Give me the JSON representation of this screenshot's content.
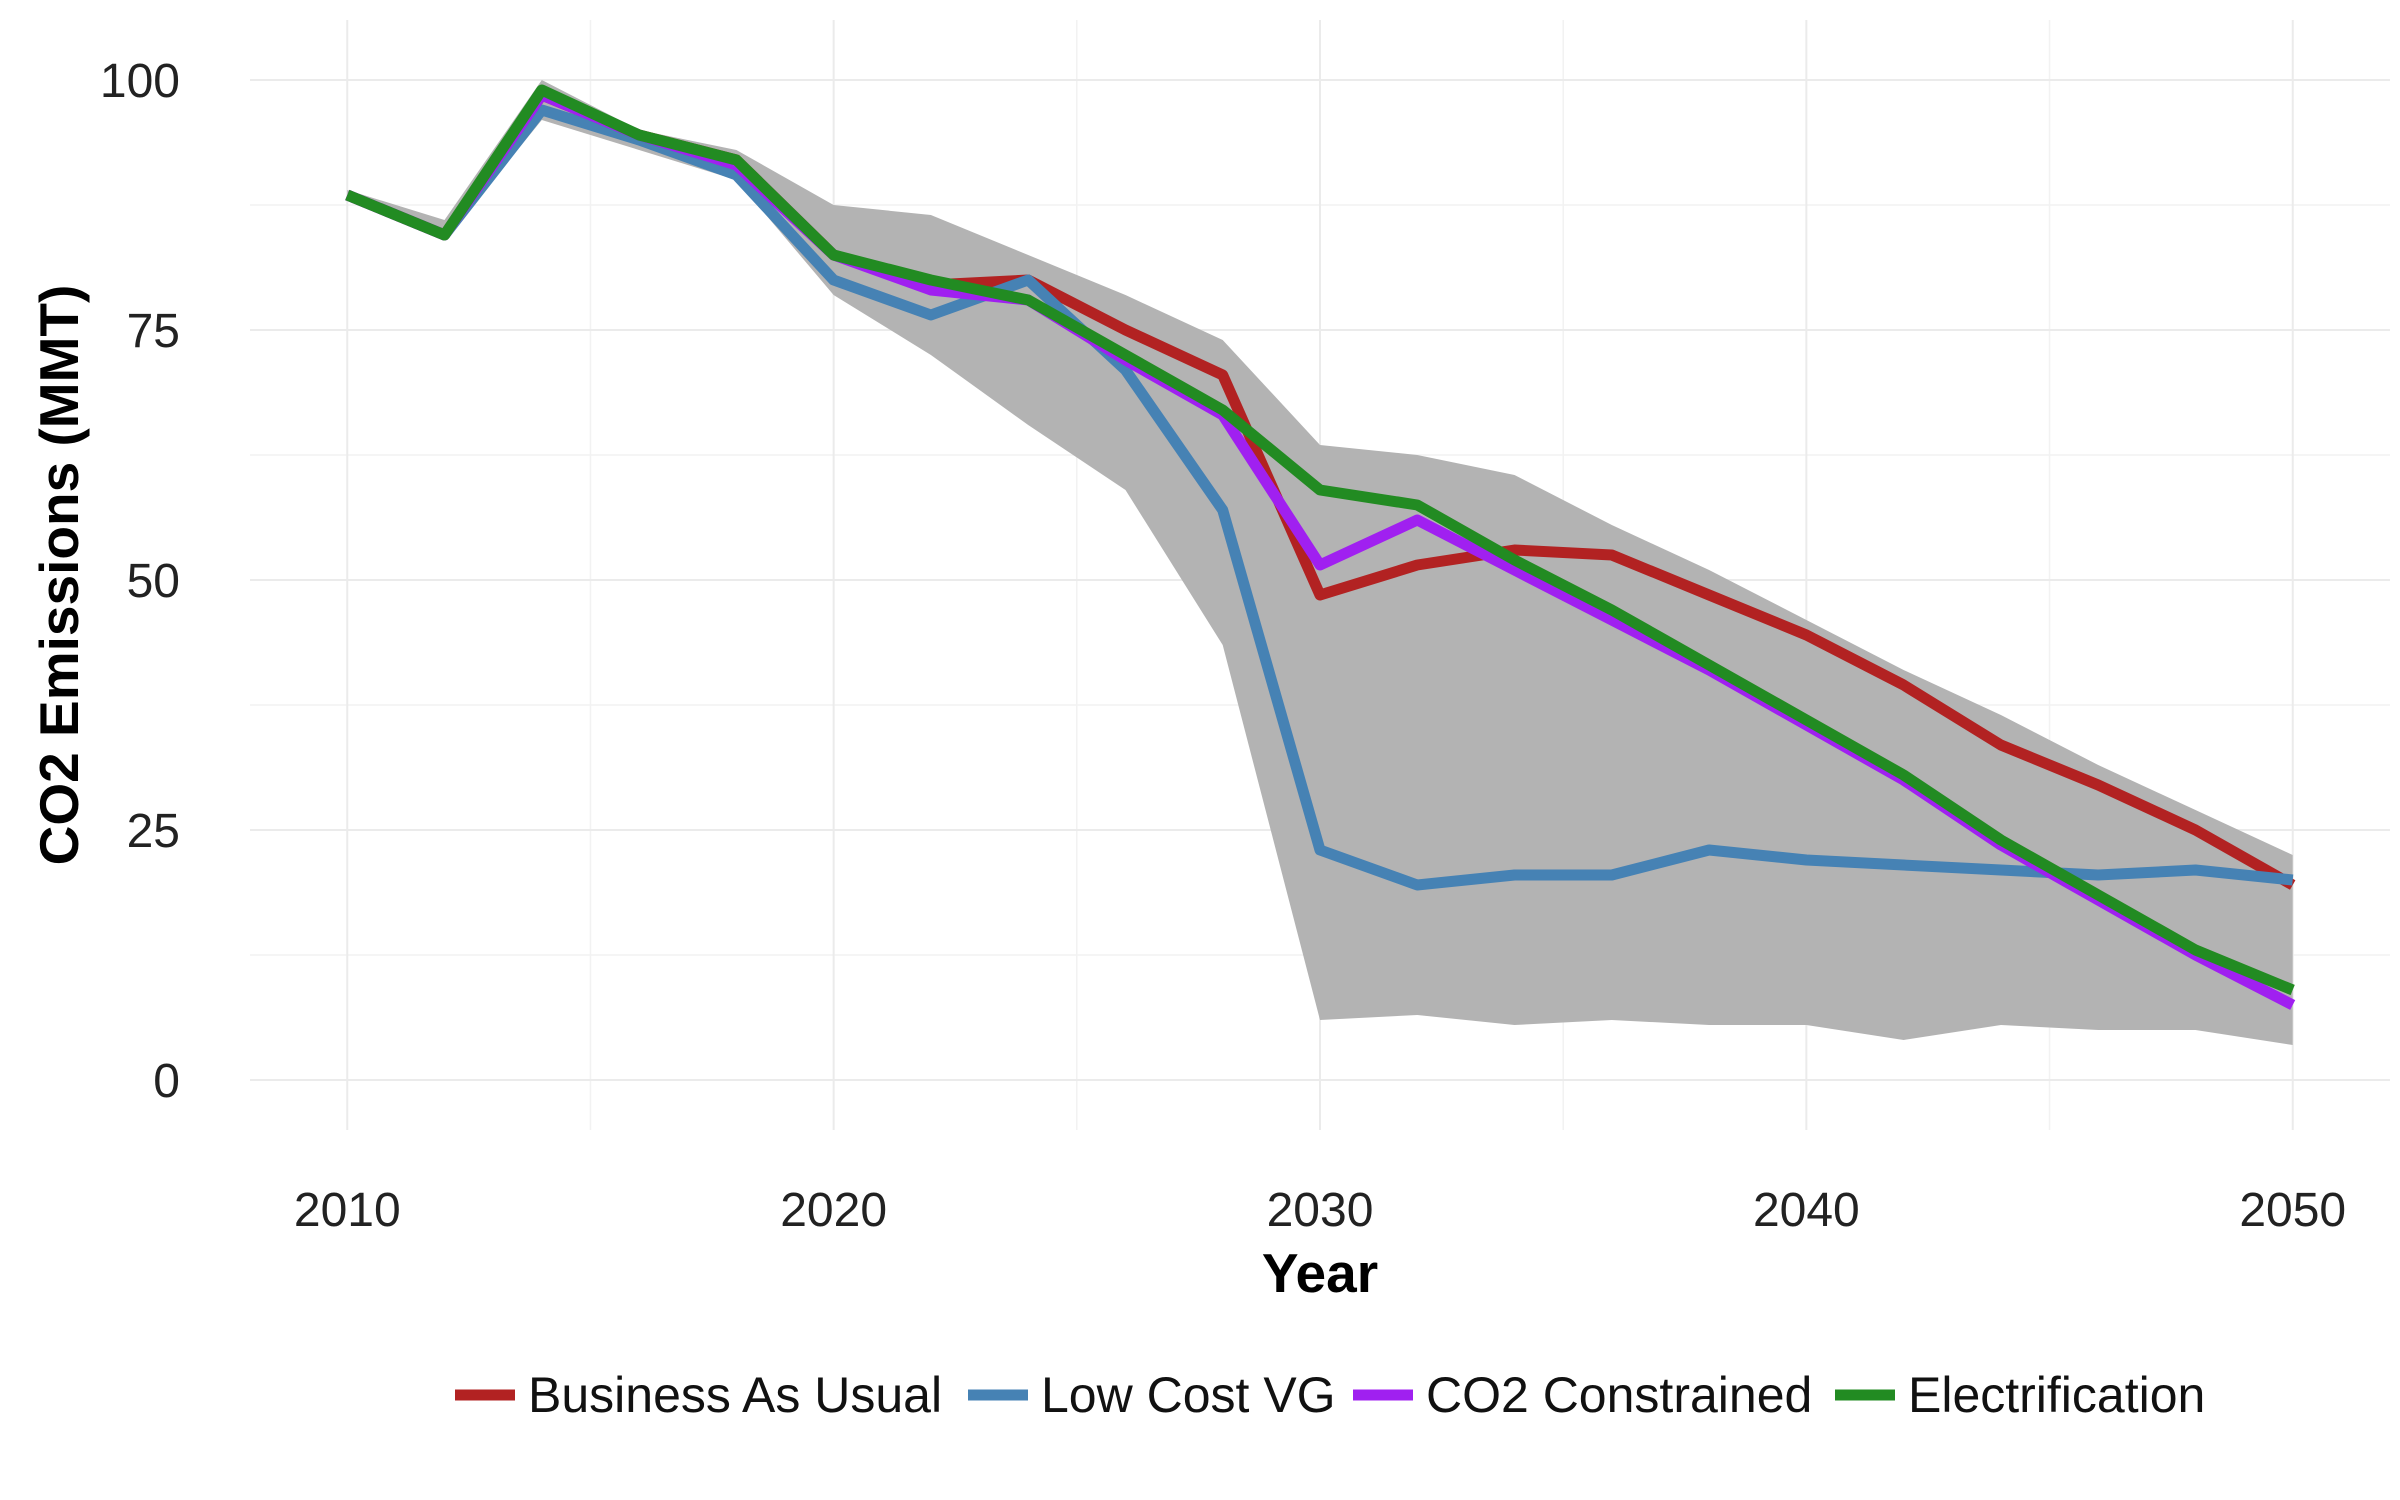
{
  "chart_data": {
    "type": "line",
    "xlabel": "Year",
    "ylabel": "CO2 Emissions (MMT)",
    "xlim": [
      2008,
      2052
    ],
    "ylim": [
      -5,
      106
    ],
    "x_ticks": [
      2010,
      2020,
      2030,
      2040,
      2050
    ],
    "y_ticks": [
      0,
      25,
      50,
      75,
      100
    ],
    "x_minor": [
      2015,
      2025,
      2035,
      2045
    ],
    "y_minor": [
      12.5,
      37.5,
      62.5,
      87.5
    ],
    "grid": true,
    "legend_position": "bottom",
    "x": [
      2010,
      2012,
      2014,
      2016,
      2018,
      2020,
      2022,
      2024,
      2026,
      2028,
      2030,
      2032,
      2034,
      2036,
      2038,
      2040,
      2042,
      2044,
      2046,
      2048,
      2050
    ],
    "ribbon": {
      "color": "#b3b3b3",
      "upper": [
        89,
        86,
        100,
        95,
        93,
        87.5,
        86.5,
        82.5,
        78.5,
        74,
        63.5,
        62.5,
        60.5,
        55.5,
        51,
        46,
        41,
        36.5,
        31.5,
        27,
        22.5
      ],
      "lower": [
        88,
        84,
        96,
        93,
        90,
        78.5,
        72.5,
        65.5,
        59,
        43.5,
        6,
        6.5,
        5.5,
        6,
        5.5,
        5.5,
        4,
        5.5,
        5,
        5,
        3.5
      ]
    },
    "series": [
      {
        "name": "Business As Usual",
        "color": "#b22222",
        "values": [
          88.5,
          84.5,
          98.5,
          94.5,
          92,
          82.5,
          79.5,
          80,
          75,
          70.5,
          48.5,
          51.5,
          53,
          52.5,
          48.5,
          44.5,
          39.5,
          33.5,
          29.5,
          25,
          19.5
        ]
      },
      {
        "name": "Low Cost VG",
        "color": "#4682b4",
        "values": [
          88.5,
          84.5,
          97,
          94,
          90.5,
          80,
          76.5,
          80,
          71,
          57,
          23,
          19.5,
          20.5,
          20.5,
          23,
          22,
          21.5,
          21,
          20.5,
          21,
          20
        ]
      },
      {
        "name": "CO2 Constrained",
        "color": "#a020f0",
        "values": [
          88.5,
          84.5,
          98.5,
          94.5,
          91.5,
          82.5,
          79,
          78,
          72,
          66.5,
          51.5,
          56,
          51,
          46,
          41,
          35.5,
          30,
          23.5,
          18,
          12.5,
          7.5
        ]
      },
      {
        "name": "Electrification",
        "color": "#228b22",
        "values": [
          88.5,
          84.5,
          99,
          94.5,
          92,
          82.5,
          80,
          78,
          72.5,
          67,
          59,
          57.5,
          52,
          47,
          41.5,
          36,
          30.5,
          24,
          18.5,
          13,
          9
        ]
      }
    ]
  }
}
